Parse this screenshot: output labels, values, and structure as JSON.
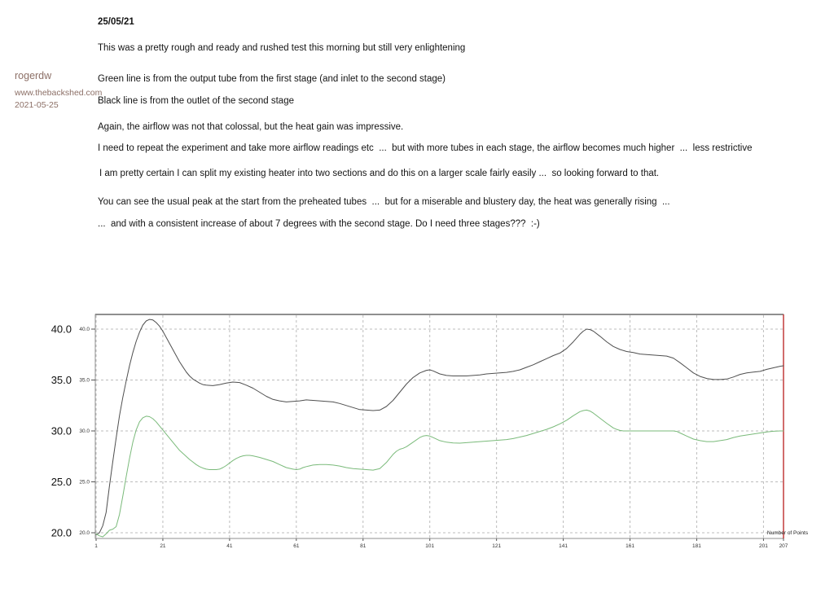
{
  "author": {
    "username": "rogerdw",
    "website": "www.thebackshed.com",
    "post_date": "2021-05-25",
    "text_color": "#8c6f66"
  },
  "post": {
    "date_heading": "25/05/21",
    "paragraphs": [
      "This was a pretty rough and ready and rushed test this morning but still very enlightening",
      "Green line is from the output tube from the first stage (and inlet to the second stage)",
      "Black line is from the outlet of the second stage",
      "Again, the airflow was not that colossal, but the heat gain was impressive.",
      "I need to repeat the experiment and take more airflow readings etc  ...  but with more tubes in each stage, the airflow becomes much higher  ...  less restrictive",
      "I am pretty certain I can split my existing heater into two sections and do this on a larger scale fairly easily ...  so looking forward to that.",
      "You can see the usual peak at the start from the preheated tubes  ...  but for a miserable and blustery day, the heat was generally rising  ...",
      "...  and with a consistent increase of about 7 degrees with the second stage. Do I need three stages???  :-)"
    ]
  },
  "chart_data": {
    "type": "line",
    "title": "",
    "xlabel": "Number of Points",
    "ylabel": "",
    "xlim": [
      1,
      207
    ],
    "ylim": [
      20,
      41.5
    ],
    "grid": true,
    "legend": "none",
    "x_ticks": [
      1,
      21,
      41,
      61,
      81,
      101,
      121,
      141,
      161,
      181,
      201,
      207
    ],
    "y_ticks": [
      20,
      25,
      30,
      35,
      40
    ],
    "y_tick_labels": [
      "20.0",
      "25.0",
      "30.0",
      "35.0",
      "40.0"
    ],
    "colors": {
      "grid": "#bcbcbc",
      "border": "#8f8f8f",
      "end_marker_line": "#c23b3b",
      "tick_text": "#333333",
      "outer_label_text": "#111111"
    },
    "series": [
      {
        "name": "Second stage outlet (black line)",
        "color": "#4f4f4f",
        "points": [
          [
            1,
            19.8
          ],
          [
            2,
            20.0
          ],
          [
            3,
            20.7
          ],
          [
            4,
            22.0
          ],
          [
            5,
            24.6
          ],
          [
            6,
            27.0
          ],
          [
            7,
            29.3
          ],
          [
            8,
            31.5
          ],
          [
            9,
            33.3
          ],
          [
            10,
            34.9
          ],
          [
            11,
            36.4
          ],
          [
            12,
            37.7
          ],
          [
            13,
            38.8
          ],
          [
            14,
            39.7
          ],
          [
            15,
            40.4
          ],
          [
            16,
            40.8
          ],
          [
            17,
            40.95
          ],
          [
            18,
            40.9
          ],
          [
            19,
            40.65
          ],
          [
            20,
            40.3
          ],
          [
            21,
            39.8
          ],
          [
            22,
            39.2
          ],
          [
            23,
            38.6
          ],
          [
            24,
            38.0
          ],
          [
            25,
            37.4
          ],
          [
            26,
            36.8
          ],
          [
            27,
            36.3
          ],
          [
            28,
            35.8
          ],
          [
            29,
            35.4
          ],
          [
            30,
            35.1
          ],
          [
            31,
            34.9
          ],
          [
            32,
            34.7
          ],
          [
            33,
            34.55
          ],
          [
            34,
            34.5
          ],
          [
            36,
            34.45
          ],
          [
            38,
            34.55
          ],
          [
            40,
            34.7
          ],
          [
            42,
            34.8
          ],
          [
            44,
            34.75
          ],
          [
            46,
            34.5
          ],
          [
            48,
            34.2
          ],
          [
            50,
            33.8
          ],
          [
            52,
            33.4
          ],
          [
            54,
            33.1
          ],
          [
            56,
            32.95
          ],
          [
            58,
            32.85
          ],
          [
            60,
            32.9
          ],
          [
            62,
            32.95
          ],
          [
            64,
            33.05
          ],
          [
            66,
            33.0
          ],
          [
            68,
            32.95
          ],
          [
            70,
            32.9
          ],
          [
            72,
            32.85
          ],
          [
            74,
            32.7
          ],
          [
            76,
            32.5
          ],
          [
            78,
            32.3
          ],
          [
            80,
            32.1
          ],
          [
            82,
            32.05
          ],
          [
            84,
            32.0
          ],
          [
            86,
            32.05
          ],
          [
            88,
            32.4
          ],
          [
            90,
            33.0
          ],
          [
            92,
            33.8
          ],
          [
            94,
            34.6
          ],
          [
            96,
            35.25
          ],
          [
            98,
            35.7
          ],
          [
            100,
            35.95
          ],
          [
            101,
            36.0
          ],
          [
            102,
            35.9
          ],
          [
            104,
            35.6
          ],
          [
            106,
            35.45
          ],
          [
            108,
            35.4
          ],
          [
            110,
            35.4
          ],
          [
            112,
            35.4
          ],
          [
            114,
            35.45
          ],
          [
            116,
            35.5
          ],
          [
            118,
            35.6
          ],
          [
            120,
            35.65
          ],
          [
            122,
            35.7
          ],
          [
            124,
            35.75
          ],
          [
            126,
            35.85
          ],
          [
            128,
            36.0
          ],
          [
            130,
            36.25
          ],
          [
            132,
            36.5
          ],
          [
            134,
            36.8
          ],
          [
            136,
            37.1
          ],
          [
            138,
            37.4
          ],
          [
            140,
            37.65
          ],
          [
            142,
            38.1
          ],
          [
            144,
            38.75
          ],
          [
            146,
            39.5
          ],
          [
            147,
            39.8
          ],
          [
            148,
            40.0
          ],
          [
            149,
            39.95
          ],
          [
            150,
            39.8
          ],
          [
            152,
            39.3
          ],
          [
            154,
            38.75
          ],
          [
            156,
            38.3
          ],
          [
            158,
            38.0
          ],
          [
            160,
            37.8
          ],
          [
            162,
            37.7
          ],
          [
            164,
            37.55
          ],
          [
            166,
            37.5
          ],
          [
            168,
            37.45
          ],
          [
            170,
            37.4
          ],
          [
            172,
            37.35
          ],
          [
            174,
            37.15
          ],
          [
            176,
            36.7
          ],
          [
            178,
            36.2
          ],
          [
            180,
            35.7
          ],
          [
            182,
            35.35
          ],
          [
            184,
            35.15
          ],
          [
            186,
            35.05
          ],
          [
            188,
            35.05
          ],
          [
            190,
            35.1
          ],
          [
            192,
            35.3
          ],
          [
            194,
            35.55
          ],
          [
            196,
            35.7
          ],
          [
            198,
            35.78
          ],
          [
            200,
            35.85
          ],
          [
            202,
            36.05
          ],
          [
            204,
            36.2
          ],
          [
            206,
            36.35
          ],
          [
            207,
            36.4
          ]
        ]
      },
      {
        "name": "First stage output / second stage inlet (green line)",
        "color": "#7aba7a",
        "points": [
          [
            1,
            19.9
          ],
          [
            2,
            19.7
          ],
          [
            3,
            19.6
          ],
          [
            4,
            19.9
          ],
          [
            5,
            20.25
          ],
          [
            6,
            20.35
          ],
          [
            7,
            20.6
          ],
          [
            8,
            21.8
          ],
          [
            9,
            23.6
          ],
          [
            10,
            25.5
          ],
          [
            11,
            27.3
          ],
          [
            12,
            28.9
          ],
          [
            13,
            30.1
          ],
          [
            14,
            30.9
          ],
          [
            15,
            31.3
          ],
          [
            16,
            31.45
          ],
          [
            17,
            31.4
          ],
          [
            18,
            31.2
          ],
          [
            19,
            30.9
          ],
          [
            20,
            30.5
          ],
          [
            21,
            30.1
          ],
          [
            22,
            29.7
          ],
          [
            23,
            29.3
          ],
          [
            24,
            28.9
          ],
          [
            25,
            28.5
          ],
          [
            26,
            28.1
          ],
          [
            27,
            27.8
          ],
          [
            28,
            27.5
          ],
          [
            29,
            27.2
          ],
          [
            30,
            26.95
          ],
          [
            31,
            26.7
          ],
          [
            32,
            26.5
          ],
          [
            33,
            26.35
          ],
          [
            34,
            26.25
          ],
          [
            35,
            26.2
          ],
          [
            37,
            26.2
          ],
          [
            38,
            26.25
          ],
          [
            39,
            26.4
          ],
          [
            40,
            26.6
          ],
          [
            41,
            26.85
          ],
          [
            42,
            27.1
          ],
          [
            43,
            27.3
          ],
          [
            44,
            27.45
          ],
          [
            45,
            27.55
          ],
          [
            46,
            27.6
          ],
          [
            47,
            27.6
          ],
          [
            48,
            27.55
          ],
          [
            50,
            27.4
          ],
          [
            52,
            27.2
          ],
          [
            54,
            27.0
          ],
          [
            56,
            26.7
          ],
          [
            58,
            26.4
          ],
          [
            60,
            26.25
          ],
          [
            61,
            26.2
          ],
          [
            62,
            26.25
          ],
          [
            63,
            26.4
          ],
          [
            64,
            26.5
          ],
          [
            66,
            26.65
          ],
          [
            68,
            26.7
          ],
          [
            70,
            26.7
          ],
          [
            72,
            26.65
          ],
          [
            74,
            26.55
          ],
          [
            76,
            26.4
          ],
          [
            78,
            26.3
          ],
          [
            80,
            26.25
          ],
          [
            82,
            26.2
          ],
          [
            84,
            26.15
          ],
          [
            86,
            26.3
          ],
          [
            88,
            26.9
          ],
          [
            90,
            27.7
          ],
          [
            91,
            28.0
          ],
          [
            92,
            28.2
          ],
          [
            93,
            28.3
          ],
          [
            94,
            28.45
          ],
          [
            96,
            28.9
          ],
          [
            98,
            29.35
          ],
          [
            99,
            29.5
          ],
          [
            100,
            29.55
          ],
          [
            101,
            29.5
          ],
          [
            102,
            29.35
          ],
          [
            104,
            29.05
          ],
          [
            106,
            28.9
          ],
          [
            108,
            28.82
          ],
          [
            110,
            28.8
          ],
          [
            112,
            28.85
          ],
          [
            114,
            28.9
          ],
          [
            116,
            28.95
          ],
          [
            118,
            29.0
          ],
          [
            120,
            29.05
          ],
          [
            122,
            29.1
          ],
          [
            124,
            29.15
          ],
          [
            126,
            29.25
          ],
          [
            128,
            29.4
          ],
          [
            130,
            29.55
          ],
          [
            132,
            29.75
          ],
          [
            134,
            29.95
          ],
          [
            136,
            30.15
          ],
          [
            138,
            30.4
          ],
          [
            140,
            30.7
          ],
          [
            142,
            31.05
          ],
          [
            144,
            31.5
          ],
          [
            146,
            31.9
          ],
          [
            147,
            32.0
          ],
          [
            148,
            32.05
          ],
          [
            149,
            31.95
          ],
          [
            150,
            31.75
          ],
          [
            152,
            31.25
          ],
          [
            154,
            30.75
          ],
          [
            156,
            30.3
          ],
          [
            157,
            30.15
          ],
          [
            158,
            30.05
          ],
          [
            159,
            30.0
          ],
          [
            162,
            30.0
          ],
          [
            165,
            30.0
          ],
          [
            168,
            30.0
          ],
          [
            171,
            30.0
          ],
          [
            174,
            30.0
          ],
          [
            175,
            29.95
          ],
          [
            176,
            29.8
          ],
          [
            178,
            29.5
          ],
          [
            180,
            29.2
          ],
          [
            182,
            29.05
          ],
          [
            184,
            28.95
          ],
          [
            186,
            28.95
          ],
          [
            188,
            29.05
          ],
          [
            190,
            29.15
          ],
          [
            192,
            29.35
          ],
          [
            194,
            29.5
          ],
          [
            196,
            29.6
          ],
          [
            198,
            29.7
          ],
          [
            200,
            29.8
          ],
          [
            202,
            29.9
          ],
          [
            204,
            29.97
          ],
          [
            206,
            30.0
          ],
          [
            207,
            30.0
          ]
        ]
      }
    ]
  }
}
